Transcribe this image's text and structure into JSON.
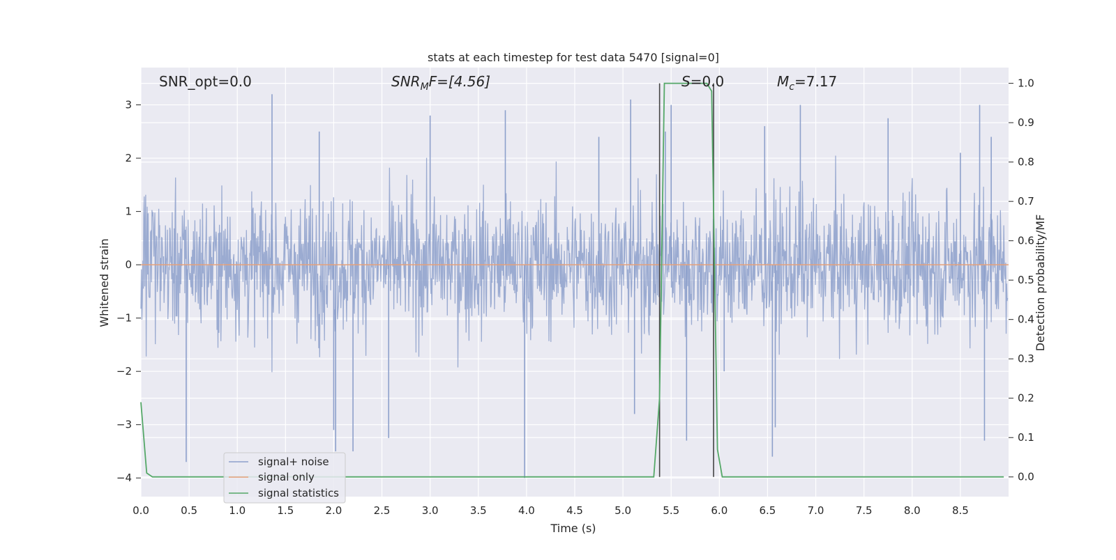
{
  "chart_data": {
    "type": "line",
    "title": "stats at each timestep for test data 5470 [signal=0]",
    "xlabel": "Time (s)",
    "ylabel_left": "Whitened strain",
    "ylabel_right": "Detection probability/MF",
    "xlim": [
      0.0,
      9.0
    ],
    "ylim_left": [
      -4.35,
      3.7
    ],
    "ylim_right": [
      -0.05,
      1.04
    ],
    "x_ticks": [
      0.0,
      0.5,
      1.0,
      1.5,
      2.0,
      2.5,
      3.0,
      3.5,
      4.0,
      4.5,
      5.0,
      5.5,
      6.0,
      6.5,
      7.0,
      7.5,
      8.0,
      8.5
    ],
    "x_tick_labels": [
      "0.0",
      "0.5",
      "1.0",
      "1.5",
      "2.0",
      "2.5",
      "3.0",
      "3.5",
      "4.0",
      "4.5",
      "5.0",
      "5.5",
      "6.0",
      "6.5",
      "7.0",
      "7.5",
      "8.0",
      "8.5"
    ],
    "y_left_ticks": [
      3,
      2,
      1,
      0,
      -1,
      -2,
      -3,
      -4
    ],
    "y_left_tick_labels": [
      "3",
      "2",
      "1",
      "0",
      "−1",
      "−2",
      "−3",
      "−4"
    ],
    "y_right_ticks": [
      1.0,
      0.9,
      0.8,
      0.7,
      0.6,
      0.5,
      0.4,
      0.3,
      0.2,
      0.1,
      0.0
    ],
    "y_right_tick_labels": [
      "1.0",
      "0.9",
      "0.8",
      "0.7",
      "0.6",
      "0.5",
      "0.4",
      "0.3",
      "0.2",
      "0.1",
      "0.0"
    ],
    "grid": true,
    "legend_position": "lower-left",
    "annotations": {
      "snr_opt": "SNR_opt=0.0",
      "snr_mf_base": "SNR",
      "snr_mf_sub": "M",
      "snr_mf_rest": "F=[4.56]",
      "s_italic": "S",
      "s_value": "=0.0",
      "mc_base": "M",
      "mc_sub": "c",
      "mc_value": "=7.17"
    },
    "series": [
      {
        "name": "signal+ noise",
        "color": "#8da0cb",
        "axis": "left",
        "description_kind": "dense-noise",
        "typical_range": [
          -1.6,
          1.6
        ],
        "spikes": [
          [
            0.47,
            -3.7
          ],
          [
            1.36,
            3.2
          ],
          [
            1.85,
            2.5
          ],
          [
            2.0,
            -3.1
          ],
          [
            2.02,
            -3.5
          ],
          [
            2.2,
            -3.5
          ],
          [
            2.57,
            -3.25
          ],
          [
            3.0,
            2.8
          ],
          [
            3.78,
            2.9
          ],
          [
            3.98,
            -4.0
          ],
          [
            4.75,
            2.4
          ],
          [
            5.08,
            3.1
          ],
          [
            5.12,
            -2.8
          ],
          [
            5.44,
            2.5
          ],
          [
            5.5,
            3.0
          ],
          [
            5.66,
            -3.3
          ],
          [
            6.05,
            -2.0
          ],
          [
            6.47,
            2.6
          ],
          [
            6.55,
            -3.6
          ],
          [
            6.58,
            -3.05
          ],
          [
            6.84,
            3.0
          ],
          [
            7.75,
            2.75
          ],
          [
            8.5,
            2.1
          ],
          [
            8.7,
            3.0
          ],
          [
            8.75,
            -3.3
          ],
          [
            8.82,
            2.4
          ]
        ]
      },
      {
        "name": "signal only",
        "color": "#e5a07a",
        "axis": "left",
        "x": [
          0.0,
          9.0
        ],
        "y": [
          0.0,
          0.0
        ]
      },
      {
        "name": "signal statistics",
        "color": "#55a868",
        "axis": "right",
        "x": [
          0.0,
          0.06,
          0.12,
          5.32,
          5.38,
          5.43,
          5.47,
          5.87,
          5.92,
          5.98,
          6.03,
          6.07,
          8.95
        ],
        "y": [
          0.19,
          0.01,
          0.0,
          0.0,
          0.2,
          1.0,
          1.0,
          1.0,
          0.98,
          0.07,
          0.0,
          0.0,
          0.0
        ]
      }
    ],
    "vertical_lines": [
      5.38,
      5.94
    ]
  }
}
